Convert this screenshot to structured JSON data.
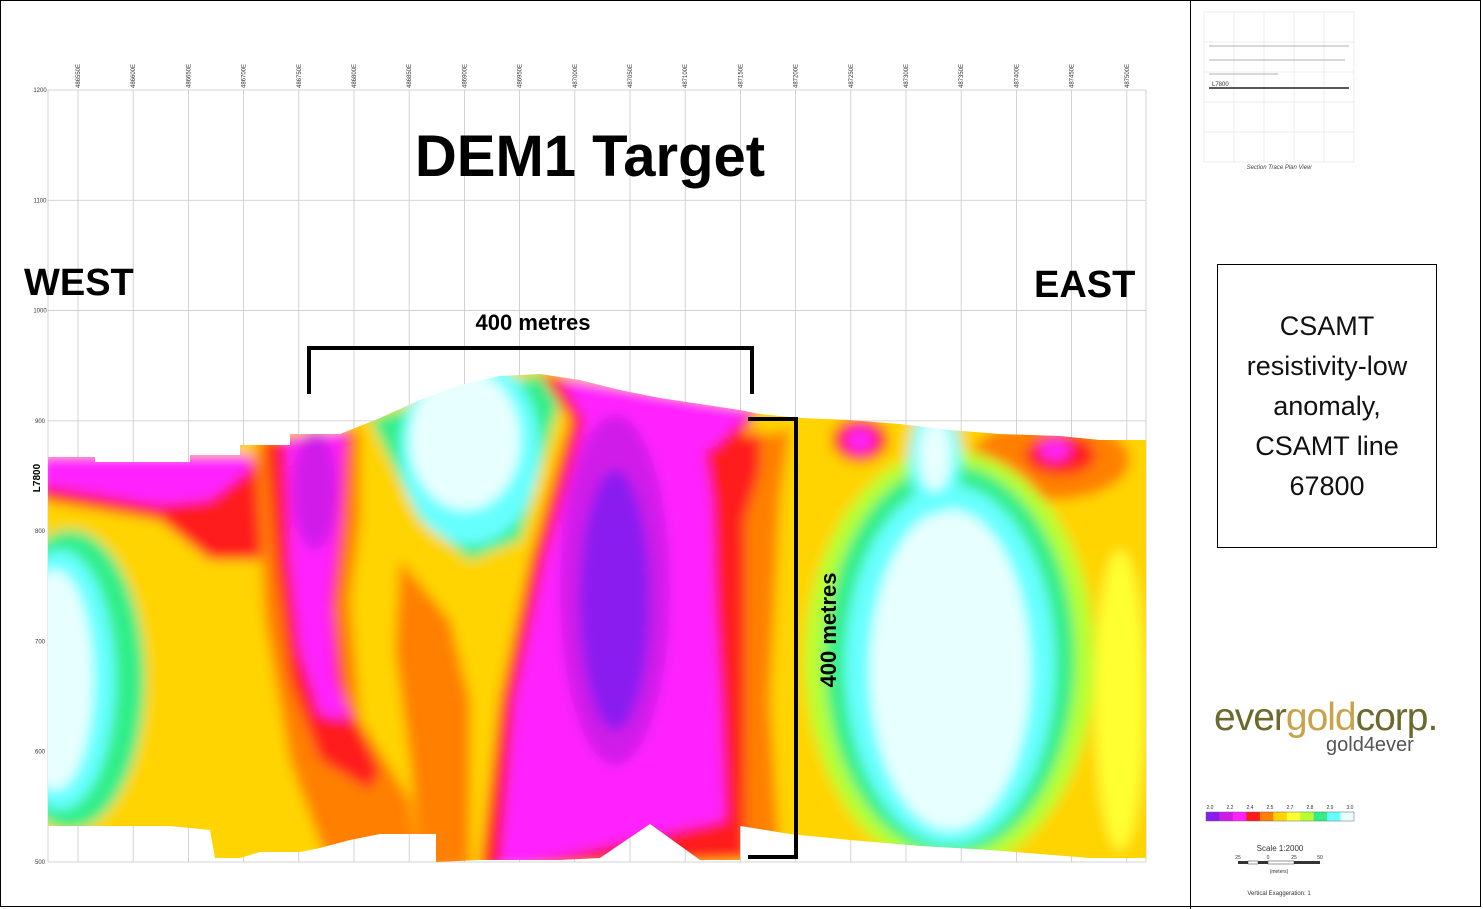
{
  "chart_data": {
    "type": "heatmap",
    "title": "DEM1 Target",
    "left_label": "WEST",
    "right_label": "EAST",
    "section_label": "L7800",
    "x_ticks": [
      "486550E",
      "486600E",
      "486650E",
      "486700E",
      "486750E",
      "486800E",
      "486850E",
      "486900E",
      "486950E",
      "487000E",
      "487050E",
      "487100E",
      "487150E",
      "487200E",
      "487250E",
      "487300E",
      "487350E",
      "487400E",
      "487450E",
      "487500E"
    ],
    "y_ticks": [
      1200,
      1100,
      1000,
      900,
      800,
      700,
      600,
      500
    ],
    "ylim": [
      500,
      1200
    ],
    "annotations": {
      "horizontal_scale": "400 metres",
      "vertical_scale": "400 metres"
    },
    "colorbar": {
      "ticks": [
        "2.0",
        "2.2",
        "2.4",
        "2.5",
        "2.7",
        "2.8",
        "2.9",
        "3.0"
      ],
      "colors": [
        "#8a1cf0",
        "#d01ae8",
        "#ff22ff",
        "#ff1a1a",
        "#ff8000",
        "#ffd400",
        "#ffff33",
        "#b6ff33",
        "#33ee88",
        "#66ffff",
        "#e8ffff"
      ]
    }
  },
  "inset": {
    "label": "L7800",
    "caption": "Section Trace Plan View"
  },
  "description": "CSAMT resistivity-low anomaly, CSAMT line 67800",
  "logo": {
    "ever": "ever",
    "gold": "gold",
    "corp": "corp.",
    "tagline": "gold4ever"
  },
  "scale_bar": {
    "title": "Scale 1:2000",
    "ticks": [
      "25",
      "0",
      "25",
      "50"
    ],
    "units": "(meters)"
  },
  "vertical_exaggeration": "Vertical Exaggeration: 1"
}
